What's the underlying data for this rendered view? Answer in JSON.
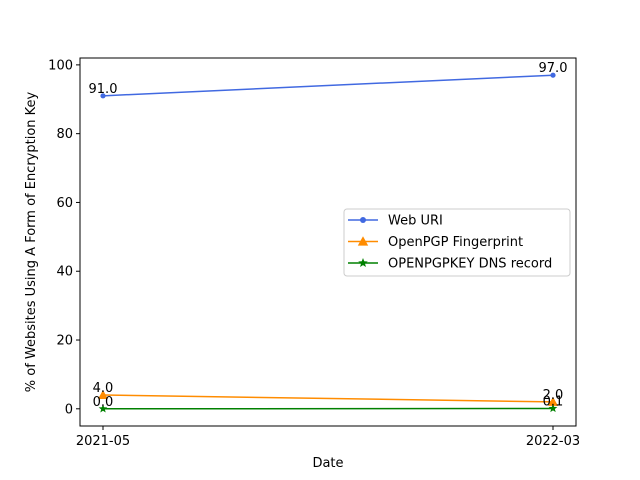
{
  "chart_data": {
    "type": "line",
    "title": "",
    "xlabel": "Date",
    "ylabel": "% of Websites Using A Form of Encryption Key",
    "categories": [
      "2021-05",
      "2022-03"
    ],
    "ylim": [
      -5,
      102
    ],
    "yticks": [
      0,
      20,
      40,
      60,
      80,
      100
    ],
    "grid": false,
    "legend_position": "center-right",
    "series": [
      {
        "name": "Web URI",
        "values": [
          91.0,
          97.0
        ],
        "value_labels": [
          "91.0",
          "97.0"
        ],
        "color": "#4169e1",
        "marker": "circle"
      },
      {
        "name": "OpenPGP Fingerprint",
        "values": [
          4.0,
          2.0
        ],
        "value_labels": [
          "4.0",
          "2.0"
        ],
        "color": "#ff8c00",
        "marker": "triangle"
      },
      {
        "name": "OPENPGPKEY DNS record",
        "values": [
          0.0,
          0.1
        ],
        "value_labels": [
          "0.0",
          "0.1"
        ],
        "color": "#008000",
        "marker": "star"
      }
    ]
  }
}
